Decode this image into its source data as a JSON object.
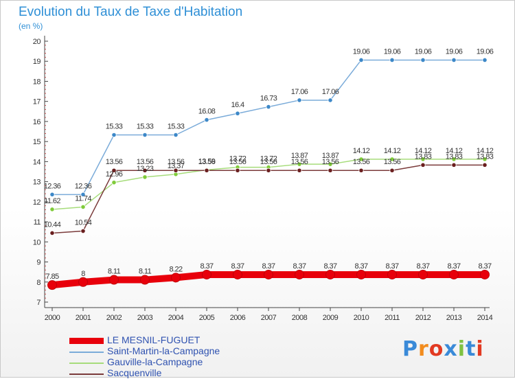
{
  "header": {
    "title": "Evolution du Taux de Taxe d'Habitation",
    "subtitle": "(en %)"
  },
  "brand": {
    "name": "Proxiti",
    "letter_colors": [
      "#3a8ad8",
      "#f28c1e",
      "#e23a22",
      "#3a8ad8",
      "#7fc241",
      "#3a8ad8",
      "#e23a22"
    ]
  },
  "chart_data": {
    "type": "line",
    "title": "Evolution du Taux de Taxe d'Habitation",
    "ylabel": "(en %)",
    "xlabel": "",
    "ylim": [
      7,
      20
    ],
    "yticks": [
      7,
      8,
      9,
      10,
      11,
      12,
      13,
      14,
      15,
      16,
      17,
      18,
      19,
      20
    ],
    "categories": [
      "2000",
      "2001",
      "2002",
      "2003",
      "2004",
      "2005",
      "2006",
      "2007",
      "2008",
      "2009",
      "2010",
      "2011",
      "2012",
      "2013",
      "2014"
    ],
    "grid": false,
    "legend_position": "bottom-left",
    "series": [
      {
        "name": "LE MESNIL-FUGUET",
        "color": "#e8000b",
        "point_color": "#e8000b",
        "values": [
          7.85,
          8,
          8.11,
          8.11,
          8.22,
          8.37,
          8.37,
          8.37,
          8.37,
          8.37,
          8.37,
          8.37,
          8.37,
          8.37,
          8.37
        ],
        "labels": [
          "7.85",
          "8",
          "8.11",
          "8.11",
          "8.22",
          "8.37",
          "8.37",
          "8.37",
          "8.37",
          "8.37",
          "8.37",
          "8.37",
          "8.37",
          "8.37",
          "8.37"
        ]
      },
      {
        "name": "Saint-Martin-la-Campagne",
        "color": "#7aabd9",
        "point_color": "#3d88c8",
        "values": [
          12.36,
          12.36,
          15.33,
          15.33,
          15.33,
          16.08,
          16.4,
          16.73,
          17.06,
          17.06,
          19.06,
          19.06,
          19.06,
          19.06,
          19.06
        ],
        "labels": [
          "12.36",
          "12.36",
          "15.33",
          "15.33",
          "15.33",
          "16.08",
          "16.4",
          "16.73",
          "17.06",
          "17.06",
          "19.06",
          "19.06",
          "19.06",
          "19.06",
          "19.06"
        ]
      },
      {
        "name": "Gauville-la-Campagne",
        "color": "#a6dc7a",
        "point_color": "#7fcb3a",
        "values": [
          11.62,
          11.74,
          12.96,
          13.23,
          13.37,
          13.59,
          13.72,
          13.72,
          13.87,
          13.87,
          14.12,
          14.12,
          14.12,
          14.12,
          14.12
        ],
        "labels": [
          "11.62",
          "11.74",
          "12.96",
          "13.23",
          "13.37",
          "13.59",
          "13.72",
          "13.72",
          "13.87",
          "13.87",
          "14.12",
          "14.12",
          "14.12",
          "14.12",
          "14.12"
        ]
      },
      {
        "name": "Sacquenville",
        "color": "#7a3a3a",
        "point_color": "#6a1f1f",
        "values": [
          10.44,
          10.54,
          13.56,
          13.56,
          13.56,
          13.56,
          13.56,
          13.56,
          13.56,
          13.56,
          13.56,
          13.56,
          13.83,
          13.83,
          13.83
        ],
        "labels": [
          "10.44",
          "10.54",
          "13.56",
          "13.56",
          "13.56",
          "13.56",
          "13.56",
          "13.56",
          "13.56",
          "13.56",
          "13.56",
          "13.56",
          "13.83",
          "13.83",
          "13.83"
        ]
      }
    ]
  }
}
